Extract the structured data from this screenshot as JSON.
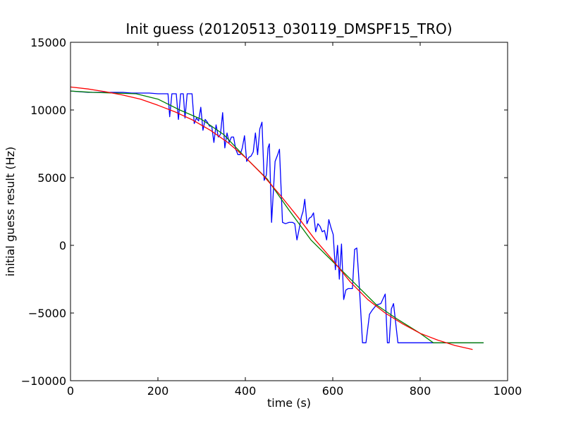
{
  "chart_data": {
    "type": "line",
    "title": "Init guess (20120513_030119_DMSPF15_TRO)",
    "xlabel": "time (s)",
    "ylabel": "initial guess result (Hz)",
    "xlim": [
      0,
      1000
    ],
    "ylim": [
      -10000,
      15000
    ],
    "x_ticks": [
      0,
      200,
      400,
      600,
      800,
      1000
    ],
    "y_ticks": [
      -10000,
      -5000,
      0,
      5000,
      10000,
      15000
    ],
    "grid": false,
    "legend": "none",
    "series": [
      {
        "color": "#0000ff",
        "x": [
          0,
          20,
          40,
          60,
          80,
          100,
          120,
          140,
          160,
          180,
          200,
          210,
          220,
          223,
          227,
          232,
          237,
          242,
          247,
          252,
          258,
          262,
          267,
          272,
          278,
          283,
          288,
          293,
          298,
          303,
          308,
          313,
          318,
          323,
          328,
          333,
          338,
          343,
          348,
          353,
          358,
          363,
          368,
          373,
          378,
          383,
          388,
          393,
          398,
          403,
          408,
          413,
          418,
          423,
          428,
          433,
          438,
          443,
          448,
          452,
          455,
          460,
          468,
          474,
          478,
          485,
          492,
          500,
          508,
          513,
          518,
          523,
          528,
          532,
          536,
          541,
          546,
          551,
          556,
          561,
          566,
          571,
          576,
          581,
          586,
          591,
          596,
          601,
          606,
          611,
          615,
          620,
          625,
          630,
          635,
          640,
          645,
          650,
          655,
          660,
          668,
          676,
          684,
          690,
          700,
          710,
          720,
          725,
          729,
          734,
          739,
          749,
          754,
          759,
          764,
          770,
          790,
          810,
          830,
          850,
          870,
          890,
          910,
          930,
          945
        ],
        "y": [
          11400,
          11350,
          11300,
          11300,
          11300,
          11300,
          11300,
          11250,
          11250,
          11250,
          11200,
          11200,
          11200,
          11200,
          9500,
          11200,
          11200,
          11200,
          9300,
          11200,
          11200,
          9400,
          11200,
          11200,
          11200,
          9000,
          9400,
          9200,
          10200,
          8500,
          9300,
          9100,
          8800,
          8800,
          7600,
          8900,
          8000,
          8200,
          9800,
          7200,
          8300,
          7600,
          8000,
          8000,
          7100,
          6700,
          6700,
          7200,
          8100,
          6200,
          6500,
          6600,
          6900,
          8300,
          6700,
          8600,
          9100,
          4800,
          5200,
          7200,
          7500,
          1700,
          6200,
          6700,
          7100,
          1700,
          1600,
          1700,
          1700,
          1600,
          400,
          1200,
          2100,
          2500,
          3400,
          1600,
          2000,
          2100,
          2400,
          1000,
          1600,
          1400,
          1000,
          1100,
          400,
          1900,
          1300,
          800,
          -1800,
          0,
          -2500,
          100,
          -4000,
          -3300,
          -3200,
          -3200,
          -3200,
          -300,
          -200,
          -2600,
          -7200,
          -7200,
          -5100,
          -4800,
          -4400,
          -4300,
          -3600,
          -7200,
          -7200,
          -4700,
          -4300,
          -7200,
          -7200,
          -7200,
          -7200,
          -7200,
          -7200,
          -7200,
          -7200,
          -7200,
          -7200,
          -7200,
          -7200,
          -7200,
          -7200
        ]
      },
      {
        "color": "#008000",
        "x": [
          0,
          50,
          100,
          150,
          200,
          250,
          300,
          350,
          400,
          450,
          500,
          550,
          600,
          650,
          700,
          750,
          800,
          830,
          860,
          900,
          945
        ],
        "y": [
          11400,
          11300,
          11250,
          11200,
          10800,
          10000,
          9300,
          8200,
          6500,
          4900,
          2600,
          400,
          -1200,
          -2800,
          -4400,
          -5500,
          -6500,
          -7200,
          -7200,
          -7200,
          -7200
        ]
      },
      {
        "color": "#ff0000",
        "x": [
          0,
          40,
          80,
          120,
          160,
          200,
          240,
          280,
          320,
          360,
          400,
          440,
          480,
          520,
          560,
          600,
          640,
          680,
          720,
          760,
          800,
          840,
          880,
          920
        ],
        "y": [
          11700,
          11550,
          11350,
          11100,
          10800,
          10350,
          9850,
          9250,
          8500,
          7600,
          6500,
          5200,
          3700,
          2100,
          400,
          -1100,
          -2700,
          -4000,
          -5000,
          -5800,
          -6500,
          -7000,
          -7400,
          -7700
        ]
      }
    ]
  }
}
